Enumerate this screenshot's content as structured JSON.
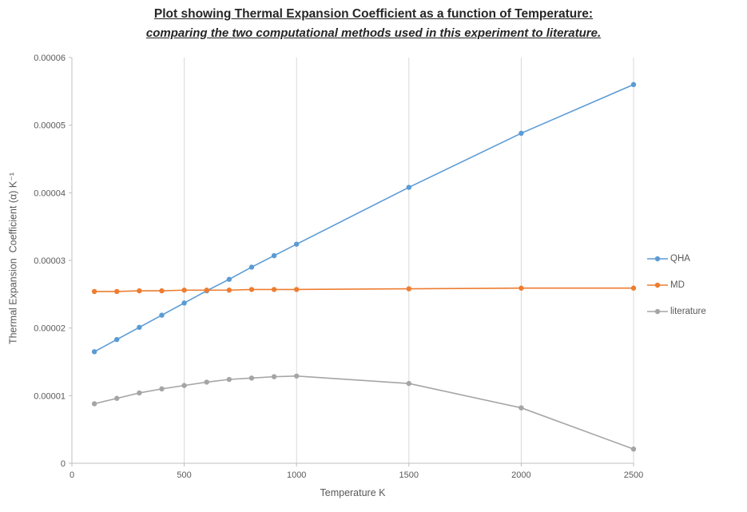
{
  "page": {
    "background": "#ffffff"
  },
  "chart_data": {
    "type": "line",
    "title": "Plot showing Thermal Expansion Coefficient as a function of Temperature:",
    "subtitle": "comparing the two computational methods used in this experiment to literature.",
    "xlabel": "Temperature K",
    "ylabel": "Thermal Expansion  Coefficient (α) K⁻¹",
    "xlim": [
      0,
      2500
    ],
    "ylim": [
      0,
      6e-05
    ],
    "x_ticks": [
      0,
      500,
      1000,
      1500,
      2000,
      2500
    ],
    "x_tick_labels": [
      "0",
      "500",
      "1000",
      "1500",
      "2000",
      "2500"
    ],
    "y_ticks": [
      0,
      1e-05,
      2e-05,
      3e-05,
      4e-05,
      5e-05,
      6e-05
    ],
    "y_tick_labels": [
      "0",
      "0.00001",
      "0.00002",
      "0.00003",
      "0.00004",
      "0.00005",
      "0.00006"
    ],
    "grid": "vertical-major-only",
    "legend_position": "right",
    "x": [
      100,
      200,
      300,
      400,
      500,
      600,
      700,
      800,
      900,
      1000,
      1500,
      2000,
      2500
    ],
    "series": [
      {
        "name": "QHA",
        "color": "#5B9BD5",
        "values": [
          1.65e-05,
          1.83e-05,
          2.01e-05,
          2.19e-05,
          2.37e-05,
          2.55e-05,
          2.72e-05,
          2.9e-05,
          3.07e-05,
          3.24e-05,
          4.08e-05,
          4.88e-05,
          5.6e-05
        ]
      },
      {
        "name": "MD",
        "color": "#ED7D31",
        "values": [
          2.54e-05,
          2.54e-05,
          2.55e-05,
          2.55e-05,
          2.56e-05,
          2.56e-05,
          2.56e-05,
          2.57e-05,
          2.57e-05,
          2.57e-05,
          2.58e-05,
          2.59e-05,
          2.59e-05
        ]
      },
      {
        "name": "literature",
        "color": "#A5A5A5",
        "values": [
          8.8e-06,
          9.6e-06,
          1.04e-05,
          1.1e-05,
          1.15e-05,
          1.2e-05,
          1.24e-05,
          1.26e-05,
          1.28e-05,
          1.29e-05,
          1.18e-05,
          8.2e-06,
          2.1e-06
        ]
      }
    ],
    "colors": {
      "gridline": "#D9D9D9",
      "axis_line": "#BFBFBF",
      "tick_label": "#595959",
      "title_text": "#262626"
    }
  }
}
